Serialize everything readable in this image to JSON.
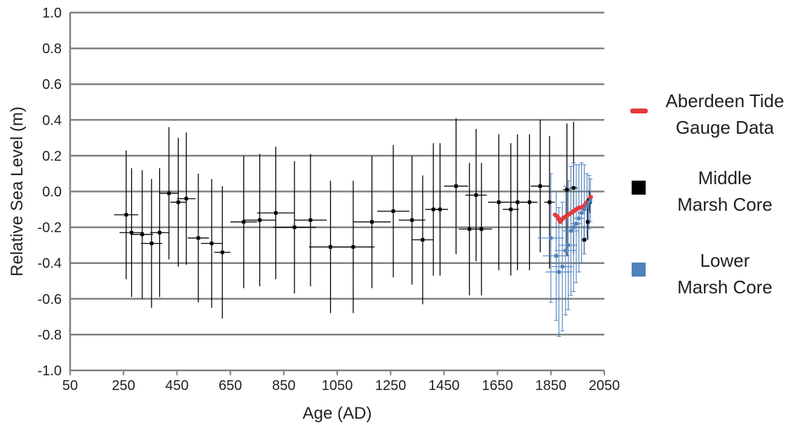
{
  "chart_data": {
    "type": "scatter",
    "title": "",
    "xlabel": "Age (AD)",
    "ylabel": "Relative Sea Level (m)",
    "xlim": [
      50,
      2050
    ],
    "ylim": [
      -1.0,
      1.0
    ],
    "xticks": [
      50,
      250,
      450,
      650,
      850,
      1050,
      1250,
      1450,
      1650,
      1850,
      2050
    ],
    "yticks": [
      1.0,
      0.8,
      0.6,
      0.4,
      0.2,
      0.0,
      -0.2,
      -0.4,
      -0.6,
      -0.8,
      -1.0
    ],
    "ytick_labels": [
      "1.0",
      "0.8",
      "0.6",
      "0.4",
      "0.2",
      "0.0",
      "-0.2",
      "-0.4",
      "-0.6",
      "-0.8",
      "-1.0"
    ],
    "grid": "horizontal",
    "legend_position": "right",
    "series": [
      {
        "name": "Middle Marsh Core",
        "color": "#000000",
        "marker": "square",
        "points": [
          {
            "x": 260,
            "y": -0.13,
            "xerr": 45,
            "yerr": 0.36
          },
          {
            "x": 280,
            "y": -0.23,
            "xerr": 45,
            "yerr": 0.36
          },
          {
            "x": 320,
            "y": -0.24,
            "xerr": 40,
            "yerr": 0.36
          },
          {
            "x": 355,
            "y": -0.29,
            "xerr": 40,
            "yerr": 0.36
          },
          {
            "x": 385,
            "y": -0.23,
            "xerr": 35,
            "yerr": 0.36
          },
          {
            "x": 420,
            "y": -0.01,
            "xerr": 35,
            "yerr": 0.37
          },
          {
            "x": 455,
            "y": -0.06,
            "xerr": 30,
            "yerr": 0.36
          },
          {
            "x": 485,
            "y": -0.04,
            "xerr": 35,
            "yerr": 0.37
          },
          {
            "x": 530,
            "y": -0.26,
            "xerr": 40,
            "yerr": 0.36
          },
          {
            "x": 580,
            "y": -0.29,
            "xerr": 40,
            "yerr": 0.36
          },
          {
            "x": 620,
            "y": -0.34,
            "xerr": 30,
            "yerr": 0.37
          },
          {
            "x": 700,
            "y": -0.17,
            "xerr": 50,
            "yerr": 0.37
          },
          {
            "x": 760,
            "y": -0.16,
            "xerr": 60,
            "yerr": 0.37
          },
          {
            "x": 820,
            "y": -0.12,
            "xerr": 70,
            "yerr": 0.37
          },
          {
            "x": 890,
            "y": -0.2,
            "xerr": 80,
            "yerr": 0.37
          },
          {
            "x": 950,
            "y": -0.16,
            "xerr": 60,
            "yerr": 0.37
          },
          {
            "x": 1025,
            "y": -0.31,
            "xerr": 80,
            "yerr": 0.37
          },
          {
            "x": 1110,
            "y": -0.31,
            "xerr": 80,
            "yerr": 0.37
          },
          {
            "x": 1180,
            "y": -0.17,
            "xerr": 70,
            "yerr": 0.37
          },
          {
            "x": 1260,
            "y": -0.11,
            "xerr": 60,
            "yerr": 0.37
          },
          {
            "x": 1330,
            "y": -0.16,
            "xerr": 50,
            "yerr": 0.36
          },
          {
            "x": 1370,
            "y": -0.27,
            "xerr": 40,
            "yerr": 0.36
          },
          {
            "x": 1410,
            "y": -0.1,
            "xerr": 30,
            "yerr": 0.37
          },
          {
            "x": 1435,
            "y": -0.1,
            "xerr": 30,
            "yerr": 0.37
          },
          {
            "x": 1495,
            "y": 0.03,
            "xerr": 45,
            "yerr": 0.38
          },
          {
            "x": 1545,
            "y": -0.21,
            "xerr": 40,
            "yerr": 0.37
          },
          {
            "x": 1570,
            "y": -0.02,
            "xerr": 40,
            "yerr": 0.37
          },
          {
            "x": 1590,
            "y": -0.21,
            "xerr": 40,
            "yerr": 0.37
          },
          {
            "x": 1655,
            "y": -0.06,
            "xerr": 40,
            "yerr": 0.38
          },
          {
            "x": 1700,
            "y": -0.1,
            "xerr": 30,
            "yerr": 0.37
          },
          {
            "x": 1725,
            "y": -0.06,
            "xerr": 30,
            "yerr": 0.38
          },
          {
            "x": 1770,
            "y": -0.06,
            "xerr": 30,
            "yerr": 0.38
          },
          {
            "x": 1810,
            "y": 0.03,
            "xerr": 35,
            "yerr": 0.37
          },
          {
            "x": 1845,
            "y": -0.06,
            "xerr": 20,
            "yerr": 0.37
          },
          {
            "x": 1910,
            "y": 0.01,
            "xerr": 15,
            "yerr": 0.37
          },
          {
            "x": 1935,
            "y": 0.02,
            "xerr": 15,
            "yerr": 0.37
          },
          {
            "x": 1975,
            "y": -0.27,
            "xerr": 10,
            "yerr": 0.08
          },
          {
            "x": 1988,
            "y": -0.17,
            "xerr": 8,
            "yerr": 0.1
          },
          {
            "x": 1993,
            "y": -0.05,
            "xerr": 8,
            "yerr": 0.06
          },
          {
            "x": 1996,
            "y": -0.06,
            "xerr": 6,
            "yerr": 0.06
          }
        ]
      },
      {
        "name": "Lower Marsh Core",
        "color": "#4f81bd",
        "marker": "square",
        "points": [
          {
            "x": 1850,
            "y": -0.26,
            "xerr": 50,
            "yerr": 0.36
          },
          {
            "x": 1870,
            "y": -0.36,
            "xerr": 50,
            "yerr": 0.36
          },
          {
            "x": 1880,
            "y": -0.45,
            "xerr": 50,
            "yerr": 0.36
          },
          {
            "x": 1893,
            "y": -0.42,
            "xerr": 40,
            "yerr": 0.36
          },
          {
            "x": 1905,
            "y": -0.33,
            "xerr": 40,
            "yerr": 0.36
          },
          {
            "x": 1915,
            "y": -0.3,
            "xerr": 35,
            "yerr": 0.36
          },
          {
            "x": 1925,
            "y": -0.22,
            "xerr": 30,
            "yerr": 0.36
          },
          {
            "x": 1935,
            "y": -0.2,
            "xerr": 25,
            "yerr": 0.36
          },
          {
            "x": 1945,
            "y": -0.18,
            "xerr": 20,
            "yerr": 0.33
          },
          {
            "x": 1955,
            "y": -0.15,
            "xerr": 20,
            "yerr": 0.3
          },
          {
            "x": 1965,
            "y": -0.12,
            "xerr": 15,
            "yerr": 0.28
          },
          {
            "x": 1975,
            "y": -0.1,
            "xerr": 12,
            "yerr": 0.25
          },
          {
            "x": 1985,
            "y": -0.08,
            "xerr": 10,
            "yerr": 0.18
          },
          {
            "x": 1993,
            "y": -0.06,
            "xerr": 8,
            "yerr": 0.15
          },
          {
            "x": 1998,
            "y": -0.05,
            "xerr": 6,
            "yerr": 0.12
          }
        ]
      },
      {
        "name": "Aberdeen Tide Gauge Data",
        "color": "#e53a3a",
        "marker": "line",
        "points": [
          {
            "x": 1865,
            "y": -0.13
          },
          {
            "x": 1875,
            "y": -0.14
          },
          {
            "x": 1885,
            "y": -0.17
          },
          {
            "x": 1895,
            "y": -0.15
          },
          {
            "x": 1905,
            "y": -0.14
          },
          {
            "x": 1915,
            "y": -0.13
          },
          {
            "x": 1925,
            "y": -0.12
          },
          {
            "x": 1935,
            "y": -0.11
          },
          {
            "x": 1945,
            "y": -0.1
          },
          {
            "x": 1955,
            "y": -0.09
          },
          {
            "x": 1965,
            "y": -0.09
          },
          {
            "x": 1975,
            "y": -0.08
          },
          {
            "x": 1985,
            "y": -0.06
          },
          {
            "x": 1995,
            "y": -0.04
          },
          {
            "x": 2000,
            "y": -0.03
          }
        ]
      }
    ],
    "legend": [
      {
        "lines": [
          "Aberdeen Tide",
          "Gauge Data"
        ],
        "color": "#e53a3a",
        "shape": "bar"
      },
      {
        "lines": [
          "Middle",
          "Marsh Core"
        ],
        "color": "#000000",
        "shape": "square"
      },
      {
        "lines": [
          "Lower",
          "Marsh Core"
        ],
        "color": "#4f81bd",
        "shape": "square"
      }
    ],
    "grid_color": "#808080",
    "axis_color": "#808080"
  }
}
